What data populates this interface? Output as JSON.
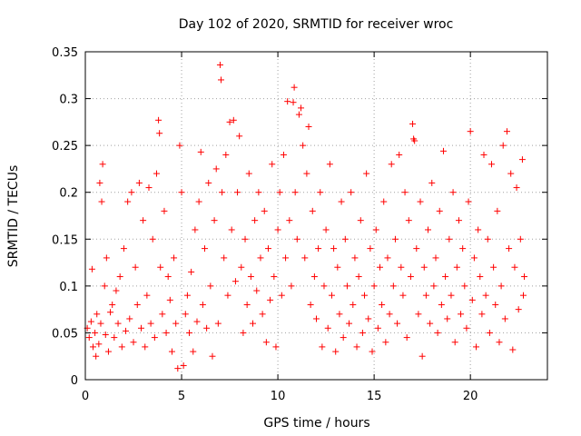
{
  "chart_data": {
    "type": "scatter",
    "title": "Day 102 of 2020, SRMTID for receiver wroc",
    "xlabel": "GPS time / hours",
    "ylabel": "SRMTID / TECUs",
    "xlim": [
      0,
      24
    ],
    "ylim": [
      0,
      0.35
    ],
    "xticks": [
      0,
      5,
      10,
      15,
      20
    ],
    "xtick_labels": [
      "0",
      "5",
      "10",
      "15",
      "20"
    ],
    "yticks": [
      0,
      0.05,
      0.1,
      0.15,
      0.2,
      0.25,
      0.3,
      0.35
    ],
    "ytick_labels": [
      "0",
      "0.05",
      "0.1",
      "0.15",
      "0.2",
      "0.25",
      "0.3",
      "0.35"
    ],
    "grid": true,
    "marker": "+",
    "color": "#ff0000",
    "series": [
      {
        "name": "SRMTID",
        "points": [
          [
            0.1,
            0.055
          ],
          [
            0.2,
            0.045
          ],
          [
            0.3,
            0.062
          ],
          [
            0.35,
            0.118
          ],
          [
            0.4,
            0.035
          ],
          [
            0.5,
            0.05
          ],
          [
            0.55,
            0.025
          ],
          [
            0.6,
            0.07
          ],
          [
            0.7,
            0.038
          ],
          [
            0.75,
            0.21
          ],
          [
            0.8,
            0.06
          ],
          [
            0.85,
            0.19
          ],
          [
            0.9,
            0.23
          ],
          [
            1.0,
            0.1
          ],
          [
            1.05,
            0.048
          ],
          [
            1.1,
            0.13
          ],
          [
            1.2,
            0.03
          ],
          [
            1.3,
            0.072
          ],
          [
            1.4,
            0.08
          ],
          [
            1.5,
            0.045
          ],
          [
            1.6,
            0.095
          ],
          [
            1.7,
            0.06
          ],
          [
            1.8,
            0.11
          ],
          [
            1.9,
            0.035
          ],
          [
            2.0,
            0.14
          ],
          [
            2.1,
            0.052
          ],
          [
            2.2,
            0.19
          ],
          [
            2.3,
            0.065
          ],
          [
            2.4,
            0.2
          ],
          [
            2.5,
            0.04
          ],
          [
            2.6,
            0.12
          ],
          [
            2.7,
            0.08
          ],
          [
            2.8,
            0.21
          ],
          [
            2.9,
            0.055
          ],
          [
            3.0,
            0.17
          ],
          [
            3.1,
            0.035
          ],
          [
            3.2,
            0.09
          ],
          [
            3.3,
            0.205
          ],
          [
            3.4,
            0.06
          ],
          [
            3.5,
            0.15
          ],
          [
            3.6,
            0.045
          ],
          [
            3.7,
            0.22
          ],
          [
            3.8,
            0.277
          ],
          [
            3.85,
            0.263
          ],
          [
            3.9,
            0.12
          ],
          [
            4.0,
            0.07
          ],
          [
            4.1,
            0.18
          ],
          [
            4.2,
            0.05
          ],
          [
            4.3,
            0.11
          ],
          [
            4.4,
            0.085
          ],
          [
            4.5,
            0.03
          ],
          [
            4.6,
            0.13
          ],
          [
            4.7,
            0.06
          ],
          [
            4.8,
            0.012
          ],
          [
            4.9,
            0.25
          ],
          [
            5.0,
            0.2
          ],
          [
            5.1,
            0.015
          ],
          [
            5.2,
            0.07
          ],
          [
            5.3,
            0.09
          ],
          [
            5.4,
            0.05
          ],
          [
            5.5,
            0.115
          ],
          [
            5.6,
            0.03
          ],
          [
            5.7,
            0.16
          ],
          [
            5.8,
            0.062
          ],
          [
            5.9,
            0.19
          ],
          [
            6.0,
            0.243
          ],
          [
            6.1,
            0.08
          ],
          [
            6.2,
            0.14
          ],
          [
            6.3,
            0.055
          ],
          [
            6.4,
            0.21
          ],
          [
            6.5,
            0.1
          ],
          [
            6.6,
            0.025
          ],
          [
            6.7,
            0.17
          ],
          [
            6.8,
            0.225
          ],
          [
            6.9,
            0.06
          ],
          [
            7.0,
            0.336
          ],
          [
            7.05,
            0.32
          ],
          [
            7.1,
            0.2
          ],
          [
            7.2,
            0.13
          ],
          [
            7.3,
            0.24
          ],
          [
            7.4,
            0.09
          ],
          [
            7.5,
            0.275
          ],
          [
            7.6,
            0.16
          ],
          [
            7.7,
            0.277
          ],
          [
            7.8,
            0.105
          ],
          [
            7.9,
            0.2
          ],
          [
            8.0,
            0.26
          ],
          [
            8.1,
            0.12
          ],
          [
            8.2,
            0.05
          ],
          [
            8.3,
            0.15
          ],
          [
            8.4,
            0.08
          ],
          [
            8.5,
            0.22
          ],
          [
            8.6,
            0.11
          ],
          [
            8.7,
            0.06
          ],
          [
            8.8,
            0.17
          ],
          [
            8.9,
            0.095
          ],
          [
            9.0,
            0.2
          ],
          [
            9.1,
            0.13
          ],
          [
            9.2,
            0.07
          ],
          [
            9.3,
            0.18
          ],
          [
            9.4,
            0.04
          ],
          [
            9.5,
            0.14
          ],
          [
            9.6,
            0.085
          ],
          [
            9.7,
            0.23
          ],
          [
            9.8,
            0.11
          ],
          [
            9.9,
            0.035
          ],
          [
            10.0,
            0.16
          ],
          [
            10.1,
            0.2
          ],
          [
            10.2,
            0.09
          ],
          [
            10.3,
            0.24
          ],
          [
            10.4,
            0.13
          ],
          [
            10.5,
            0.297
          ],
          [
            10.6,
            0.17
          ],
          [
            10.7,
            0.1
          ],
          [
            10.8,
            0.296
          ],
          [
            10.85,
            0.312
          ],
          [
            10.9,
            0.2
          ],
          [
            11.0,
            0.15
          ],
          [
            11.1,
            0.283
          ],
          [
            11.2,
            0.29
          ],
          [
            11.3,
            0.25
          ],
          [
            11.4,
            0.13
          ],
          [
            11.5,
            0.22
          ],
          [
            11.6,
            0.27
          ],
          [
            11.7,
            0.08
          ],
          [
            11.8,
            0.18
          ],
          [
            11.9,
            0.11
          ],
          [
            12.0,
            0.065
          ],
          [
            12.1,
            0.14
          ],
          [
            12.2,
            0.2
          ],
          [
            12.3,
            0.035
          ],
          [
            12.4,
            0.1
          ],
          [
            12.5,
            0.16
          ],
          [
            12.6,
            0.055
          ],
          [
            12.7,
            0.23
          ],
          [
            12.8,
            0.09
          ],
          [
            12.9,
            0.14
          ],
          [
            13.0,
            0.03
          ],
          [
            13.1,
            0.12
          ],
          [
            13.2,
            0.07
          ],
          [
            13.3,
            0.19
          ],
          [
            13.4,
            0.045
          ],
          [
            13.5,
            0.15
          ],
          [
            13.6,
            0.1
          ],
          [
            13.7,
            0.06
          ],
          [
            13.8,
            0.2
          ],
          [
            13.9,
            0.08
          ],
          [
            14.0,
            0.13
          ],
          [
            14.1,
            0.035
          ],
          [
            14.2,
            0.11
          ],
          [
            14.3,
            0.17
          ],
          [
            14.4,
            0.05
          ],
          [
            14.5,
            0.09
          ],
          [
            14.6,
            0.22
          ],
          [
            14.7,
            0.065
          ],
          [
            14.8,
            0.14
          ],
          [
            14.9,
            0.03
          ],
          [
            15.0,
            0.1
          ],
          [
            15.1,
            0.16
          ],
          [
            15.2,
            0.055
          ],
          [
            15.3,
            0.12
          ],
          [
            15.4,
            0.08
          ],
          [
            15.5,
            0.19
          ],
          [
            15.6,
            0.04
          ],
          [
            15.7,
            0.13
          ],
          [
            15.8,
            0.07
          ],
          [
            15.9,
            0.23
          ],
          [
            16.0,
            0.1
          ],
          [
            16.1,
            0.15
          ],
          [
            16.2,
            0.06
          ],
          [
            16.3,
            0.24
          ],
          [
            16.4,
            0.12
          ],
          [
            16.5,
            0.09
          ],
          [
            16.6,
            0.2
          ],
          [
            16.7,
            0.045
          ],
          [
            16.8,
            0.17
          ],
          [
            16.9,
            0.11
          ],
          [
            17.0,
            0.273
          ],
          [
            17.05,
            0.257
          ],
          [
            17.1,
            0.255
          ],
          [
            17.2,
            0.14
          ],
          [
            17.3,
            0.07
          ],
          [
            17.4,
            0.19
          ],
          [
            17.5,
            0.025
          ],
          [
            17.6,
            0.12
          ],
          [
            17.7,
            0.09
          ],
          [
            17.8,
            0.16
          ],
          [
            17.9,
            0.06
          ],
          [
            18.0,
            0.21
          ],
          [
            18.1,
            0.1
          ],
          [
            18.2,
            0.13
          ],
          [
            18.3,
            0.05
          ],
          [
            18.4,
            0.18
          ],
          [
            18.5,
            0.08
          ],
          [
            18.6,
            0.244
          ],
          [
            18.7,
            0.11
          ],
          [
            18.8,
            0.065
          ],
          [
            18.9,
            0.15
          ],
          [
            19.0,
            0.09
          ],
          [
            19.1,
            0.2
          ],
          [
            19.2,
            0.04
          ],
          [
            19.3,
            0.12
          ],
          [
            19.4,
            0.17
          ],
          [
            19.5,
            0.07
          ],
          [
            19.6,
            0.14
          ],
          [
            19.7,
            0.1
          ],
          [
            19.8,
            0.055
          ],
          [
            19.9,
            0.19
          ],
          [
            20.0,
            0.265
          ],
          [
            20.1,
            0.085
          ],
          [
            20.2,
            0.13
          ],
          [
            20.3,
            0.035
          ],
          [
            20.4,
            0.16
          ],
          [
            20.5,
            0.11
          ],
          [
            20.6,
            0.07
          ],
          [
            20.7,
            0.24
          ],
          [
            20.8,
            0.09
          ],
          [
            20.9,
            0.15
          ],
          [
            21.0,
            0.05
          ],
          [
            21.1,
            0.23
          ],
          [
            21.2,
            0.12
          ],
          [
            21.3,
            0.08
          ],
          [
            21.4,
            0.18
          ],
          [
            21.5,
            0.04
          ],
          [
            21.6,
            0.1
          ],
          [
            21.7,
            0.25
          ],
          [
            21.8,
            0.065
          ],
          [
            21.9,
            0.265
          ],
          [
            22.0,
            0.14
          ],
          [
            22.1,
            0.22
          ],
          [
            22.2,
            0.032
          ],
          [
            22.3,
            0.12
          ],
          [
            22.4,
            0.205
          ],
          [
            22.5,
            0.075
          ],
          [
            22.6,
            0.15
          ],
          [
            22.7,
            0.235
          ],
          [
            22.75,
            0.09
          ],
          [
            22.8,
            0.11
          ]
        ]
      }
    ]
  }
}
